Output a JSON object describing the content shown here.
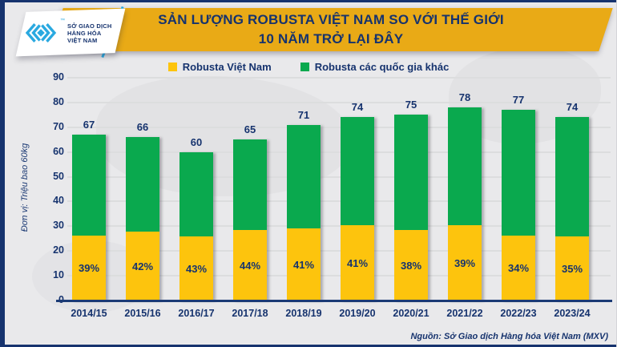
{
  "brand": {
    "lines": [
      "SỞ GIAO DỊCH",
      "HÀNG HÓA",
      "VIỆT NAM"
    ],
    "tm": "™"
  },
  "title": {
    "line1": "SẢN LƯỢNG ROBUSTA VIỆT NAM SO VỚI THẾ GIỚI",
    "line2": "10 NĂM TRỞ LẠI ĐÂY"
  },
  "legend": {
    "items": [
      {
        "label": "Robusta Việt Nam",
        "color": "#fdc40d"
      },
      {
        "label": "Robusta các quốc gia khác",
        "color": "#0aa94e"
      }
    ]
  },
  "source": "Nguồn: Sở Giao dịch Hàng hóa Việt Nam (MXV)",
  "colors": {
    "navy": "#16336e",
    "banner_gold": "#e9aa16",
    "bar_yellow": "#fdc40d",
    "bar_green": "#0aa94e",
    "background": "#e9e9eb",
    "cyan": "#2aa9e0"
  },
  "chart_data": {
    "type": "bar",
    "stacked": true,
    "title": "SẢN LƯỢNG ROBUSTA VIỆT NAM SO VỚI THẾ GIỚI 10 NĂM TRỞ LẠI ĐÂY",
    "ylabel": "Đơn vị: Triệu bao 60kg",
    "ylim": [
      0,
      90
    ],
    "ytick_step": 10,
    "yticks": [
      0,
      10,
      20,
      30,
      40,
      50,
      60,
      70,
      80,
      90
    ],
    "grid": true,
    "legend_position": "top",
    "categories": [
      "2014/15",
      "2015/16",
      "2016/17",
      "2017/18",
      "2018/19",
      "2019/20",
      "2020/21",
      "2021/22",
      "2022/23",
      "2023/24"
    ],
    "totals": [
      67,
      66,
      60,
      65,
      71,
      74,
      75,
      78,
      77,
      74
    ],
    "total_labels": [
      "67",
      "66",
      "60",
      "65",
      "71",
      "74",
      "75",
      "78",
      "77",
      "74"
    ],
    "vietnam_pct": [
      39,
      42,
      43,
      44,
      41,
      41,
      38,
      39,
      34,
      35
    ],
    "vietnam_pct_labels": [
      "39%",
      "42%",
      "43%",
      "44%",
      "41%",
      "41%",
      "38%",
      "39%",
      "34%",
      "35%"
    ],
    "series": [
      {
        "name": "Robusta Việt Nam",
        "values": [
          26.1,
          27.7,
          25.8,
          28.6,
          29.1,
          30.3,
          28.5,
          30.4,
          26.2,
          25.9
        ]
      },
      {
        "name": "Robusta các quốc gia khác",
        "values": [
          40.9,
          38.3,
          34.2,
          36.4,
          41.9,
          43.7,
          46.5,
          47.6,
          50.8,
          48.1
        ]
      }
    ]
  }
}
